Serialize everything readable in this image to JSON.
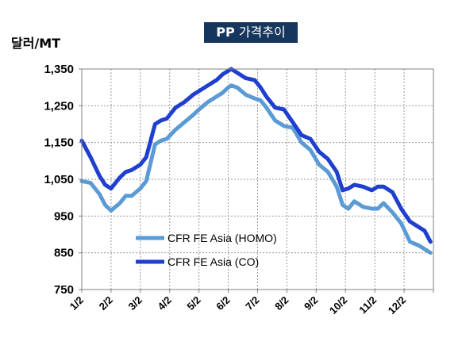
{
  "chart_data": {
    "type": "line",
    "title_prefix": "PP",
    "title_rest": " 가격추이",
    "ylabel": "달러/MT",
    "ylim": [
      750,
      1350
    ],
    "yticks": [
      750,
      850,
      950,
      1050,
      1150,
      1250,
      1350
    ],
    "ytick_labels": [
      "750",
      "850",
      "950",
      "1,050",
      "1,150",
      "1,250",
      "1,350"
    ],
    "xticks": [
      "1/2",
      "2/2",
      "3/2",
      "4/2",
      "5/2",
      "6/2",
      "7/2",
      "8/2",
      "9/2",
      "10/2",
      "11/2",
      "12/2"
    ],
    "grid": true,
    "legend_position": "lower-left",
    "series": [
      {
        "name": "CFR FE Asia (HOMO)",
        "color": "#5b9bd5",
        "x": [
          0,
          0.3,
          0.6,
          0.8,
          1.0,
          1.3,
          1.5,
          1.7,
          2.0,
          2.2,
          2.5,
          2.7,
          2.9,
          3.2,
          3.5,
          3.8,
          4.0,
          4.3,
          4.6,
          4.8,
          5.0,
          5.1,
          5.3,
          5.6,
          5.9,
          6.1,
          6.3,
          6.6,
          6.9,
          7.2,
          7.5,
          7.8,
          8.1,
          8.4,
          8.7,
          8.9,
          9.1,
          9.3,
          9.6,
          9.9,
          10.1,
          10.3,
          10.6,
          10.9,
          11.2,
          11.5,
          11.7,
          11.9
        ],
        "values": [
          1045,
          1040,
          1010,
          980,
          965,
          985,
          1005,
          1005,
          1025,
          1045,
          1145,
          1155,
          1160,
          1185,
          1205,
          1225,
          1240,
          1260,
          1275,
          1285,
          1300,
          1305,
          1300,
          1280,
          1270,
          1265,
          1245,
          1210,
          1195,
          1190,
          1150,
          1130,
          1090,
          1070,
          1030,
          980,
          970,
          990,
          975,
          970,
          970,
          985,
          960,
          930,
          880,
          870,
          860,
          850
        ]
      },
      {
        "name": "CFR FE Asia (CO)",
        "color": "#1f3fcf",
        "x": [
          0,
          0.3,
          0.6,
          0.8,
          1.0,
          1.3,
          1.5,
          1.7,
          2.0,
          2.2,
          2.5,
          2.7,
          2.9,
          3.2,
          3.5,
          3.8,
          4.0,
          4.3,
          4.6,
          4.8,
          5.0,
          5.1,
          5.3,
          5.6,
          5.9,
          6.1,
          6.3,
          6.6,
          6.9,
          7.2,
          7.5,
          7.8,
          8.1,
          8.4,
          8.7,
          8.9,
          9.1,
          9.3,
          9.6,
          9.9,
          10.1,
          10.3,
          10.6,
          10.9,
          11.2,
          11.5,
          11.7,
          11.9
        ],
        "values": [
          1155,
          1110,
          1060,
          1035,
          1025,
          1055,
          1070,
          1075,
          1090,
          1110,
          1200,
          1210,
          1215,
          1245,
          1260,
          1280,
          1290,
          1305,
          1320,
          1335,
          1345,
          1350,
          1340,
          1325,
          1320,
          1300,
          1275,
          1245,
          1240,
          1205,
          1170,
          1160,
          1125,
          1105,
          1070,
          1020,
          1025,
          1035,
          1030,
          1020,
          1030,
          1030,
          1015,
          970,
          935,
          920,
          910,
          880
        ]
      }
    ]
  }
}
